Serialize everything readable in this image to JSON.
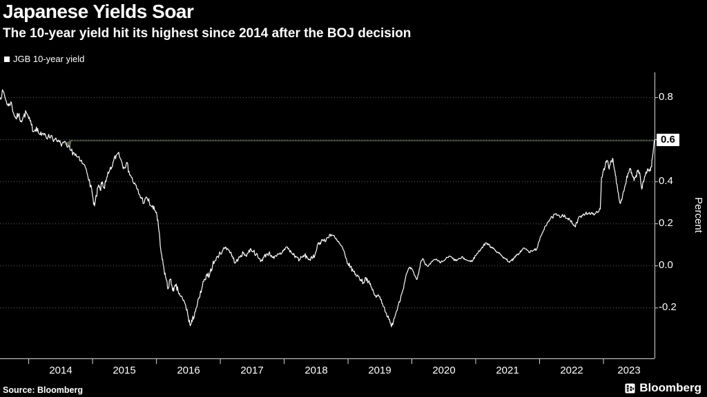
{
  "header": {
    "title": "Japanese Yields Soar",
    "subtitle": "The 10-year yield hit its highest since 2014 after the BOJ decision"
  },
  "legend": {
    "label": "JGB 10-year yield",
    "marker_color": "#ffffff"
  },
  "axes": {
    "y_label": "Percent",
    "y_ticks": [
      0.8,
      0.6,
      0.4,
      0.2,
      0.0,
      -0.2
    ],
    "y_tick_labels": [
      "0.8",
      "0.6",
      "0.4",
      "0.2",
      "0.0",
      "-0.2"
    ],
    "highlighted_tick": "0.6",
    "x_ticks": [
      "2014",
      "2015",
      "2016",
      "2017",
      "2018",
      "2019",
      "2020",
      "2021",
      "2022",
      "2023"
    ]
  },
  "source": {
    "text": "Source: Bloomberg"
  },
  "branding": {
    "logo_text": "Bloomberg"
  },
  "colors": {
    "background": "#000000",
    "text": "#ffffff",
    "grid": "#6a6a6a",
    "axis": "#d9d9d9",
    "series": "#ffffff",
    "reference_line": "#55624a",
    "highlight_bg": "#ffffff",
    "highlight_text": "#000000"
  },
  "chart_data": {
    "type": "line",
    "title": "Japanese Yields Soar",
    "subtitle": "The 10-year yield hit its highest since 2014 after the BOJ decision",
    "ylabel": "Percent",
    "legend_position": "top-left",
    "grid": "dotted-horizontal",
    "xlim": [
      2013.55,
      2023.8
    ],
    "ylim": [
      -0.44,
      0.92
    ],
    "x_tick_years": [
      2014,
      2015,
      2016,
      2017,
      2018,
      2019,
      2020,
      2021,
      2022,
      2023
    ],
    "y_ticks": [
      0.8,
      0.6,
      0.4,
      0.2,
      0.0,
      -0.2
    ],
    "reference_line": {
      "value": 0.595,
      "axis_label": "0.6"
    },
    "series": [
      {
        "name": "JGB 10-year yield",
        "color": "#ffffff",
        "points": [
          [
            2013.55,
            0.8
          ],
          [
            2013.6,
            0.83
          ],
          [
            2013.64,
            0.79
          ],
          [
            2013.68,
            0.76
          ],
          [
            2013.72,
            0.78
          ],
          [
            2013.76,
            0.73
          ],
          [
            2013.8,
            0.7
          ],
          [
            2013.84,
            0.72
          ],
          [
            2013.88,
            0.69
          ],
          [
            2013.92,
            0.71
          ],
          [
            2013.96,
            0.73
          ],
          [
            2014.0,
            0.7
          ],
          [
            2014.04,
            0.67
          ],
          [
            2014.08,
            0.64
          ],
          [
            2014.12,
            0.66
          ],
          [
            2014.16,
            0.63
          ],
          [
            2014.2,
            0.62
          ],
          [
            2014.25,
            0.63
          ],
          [
            2014.3,
            0.61
          ],
          [
            2014.35,
            0.62
          ],
          [
            2014.4,
            0.6
          ],
          [
            2014.45,
            0.59
          ],
          [
            2014.5,
            0.58
          ],
          [
            2014.55,
            0.585
          ],
          [
            2014.6,
            0.565
          ],
          [
            2014.65,
            0.55
          ],
          [
            2014.7,
            0.54
          ],
          [
            2014.75,
            0.52
          ],
          [
            2014.8,
            0.5
          ],
          [
            2014.85,
            0.485
          ],
          [
            2014.9,
            0.46
          ],
          [
            2014.95,
            0.41
          ],
          [
            2015.0,
            0.33
          ],
          [
            2015.03,
            0.285
          ],
          [
            2015.06,
            0.33
          ],
          [
            2015.09,
            0.38
          ],
          [
            2015.12,
            0.36
          ],
          [
            2015.15,
            0.4
          ],
          [
            2015.18,
            0.37
          ],
          [
            2015.21,
            0.4
          ],
          [
            2015.25,
            0.44
          ],
          [
            2015.29,
            0.46
          ],
          [
            2015.33,
            0.5
          ],
          [
            2015.37,
            0.525
          ],
          [
            2015.41,
            0.54
          ],
          [
            2015.45,
            0.5
          ],
          [
            2015.49,
            0.47
          ],
          [
            2015.53,
            0.49
          ],
          [
            2015.57,
            0.45
          ],
          [
            2015.61,
            0.42
          ],
          [
            2015.65,
            0.39
          ],
          [
            2015.69,
            0.37
          ],
          [
            2015.73,
            0.34
          ],
          [
            2015.77,
            0.32
          ],
          [
            2015.81,
            0.3
          ],
          [
            2015.85,
            0.325
          ],
          [
            2015.89,
            0.3
          ],
          [
            2015.93,
            0.28
          ],
          [
            2015.97,
            0.265
          ],
          [
            2016.0,
            0.255
          ],
          [
            2016.03,
            0.19
          ],
          [
            2016.06,
            0.095
          ],
          [
            2016.09,
            0.03
          ],
          [
            2016.12,
            -0.02
          ],
          [
            2016.15,
            -0.06
          ],
          [
            2016.18,
            -0.11
          ],
          [
            2016.21,
            -0.065
          ],
          [
            2016.24,
            -0.09
          ],
          [
            2016.27,
            -0.12
          ],
          [
            2016.3,
            -0.095
          ],
          [
            2016.34,
            -0.12
          ],
          [
            2016.38,
            -0.145
          ],
          [
            2016.42,
            -0.165
          ],
          [
            2016.46,
            -0.19
          ],
          [
            2016.5,
            -0.245
          ],
          [
            2016.53,
            -0.285
          ],
          [
            2016.56,
            -0.265
          ],
          [
            2016.6,
            -0.22
          ],
          [
            2016.64,
            -0.185
          ],
          [
            2016.68,
            -0.145
          ],
          [
            2016.72,
            -0.095
          ],
          [
            2016.76,
            -0.065
          ],
          [
            2016.8,
            -0.05
          ],
          [
            2016.84,
            -0.03
          ],
          [
            2016.88,
            0.005
          ],
          [
            2016.92,
            0.025
          ],
          [
            2016.96,
            0.045
          ],
          [
            2017.0,
            0.06
          ],
          [
            2017.04,
            0.075
          ],
          [
            2017.08,
            0.09
          ],
          [
            2017.12,
            0.08
          ],
          [
            2017.16,
            0.065
          ],
          [
            2017.2,
            0.035
          ],
          [
            2017.24,
            0.015
          ],
          [
            2017.28,
            0.03
          ],
          [
            2017.32,
            0.05
          ],
          [
            2017.36,
            0.06
          ],
          [
            2017.4,
            0.05
          ],
          [
            2017.44,
            0.065
          ],
          [
            2017.48,
            0.08
          ],
          [
            2017.52,
            0.07
          ],
          [
            2017.56,
            0.055
          ],
          [
            2017.6,
            0.035
          ],
          [
            2017.64,
            0.025
          ],
          [
            2017.68,
            0.04
          ],
          [
            2017.72,
            0.055
          ],
          [
            2017.76,
            0.06
          ],
          [
            2017.8,
            0.05
          ],
          [
            2017.84,
            0.035
          ],
          [
            2017.88,
            0.045
          ],
          [
            2017.92,
            0.055
          ],
          [
            2017.96,
            0.06
          ],
          [
            2018.0,
            0.08
          ],
          [
            2018.04,
            0.09
          ],
          [
            2018.08,
            0.075
          ],
          [
            2018.12,
            0.06
          ],
          [
            2018.16,
            0.05
          ],
          [
            2018.2,
            0.04
          ],
          [
            2018.24,
            0.03
          ],
          [
            2018.28,
            0.04
          ],
          [
            2018.32,
            0.05
          ],
          [
            2018.36,
            0.04
          ],
          [
            2018.4,
            0.03
          ],
          [
            2018.44,
            0.035
          ],
          [
            2018.48,
            0.05
          ],
          [
            2018.52,
            0.1
          ],
          [
            2018.56,
            0.11
          ],
          [
            2018.6,
            0.125
          ],
          [
            2018.64,
            0.115
          ],
          [
            2018.68,
            0.135
          ],
          [
            2018.72,
            0.15
          ],
          [
            2018.76,
            0.145
          ],
          [
            2018.8,
            0.13
          ],
          [
            2018.84,
            0.115
          ],
          [
            2018.88,
            0.1
          ],
          [
            2018.92,
            0.08
          ],
          [
            2018.96,
            0.04
          ],
          [
            2019.0,
            0.01
          ],
          [
            2019.04,
            -0.005
          ],
          [
            2019.08,
            -0.025
          ],
          [
            2019.12,
            -0.04
          ],
          [
            2019.16,
            -0.05
          ],
          [
            2019.2,
            -0.065
          ],
          [
            2019.24,
            -0.08
          ],
          [
            2019.28,
            -0.055
          ],
          [
            2019.32,
            -0.075
          ],
          [
            2019.36,
            -0.1
          ],
          [
            2019.4,
            -0.125
          ],
          [
            2019.44,
            -0.15
          ],
          [
            2019.48,
            -0.14
          ],
          [
            2019.52,
            -0.16
          ],
          [
            2019.56,
            -0.195
          ],
          [
            2019.6,
            -0.225
          ],
          [
            2019.64,
            -0.255
          ],
          [
            2019.68,
            -0.29
          ],
          [
            2019.72,
            -0.25
          ],
          [
            2019.76,
            -0.215
          ],
          [
            2019.8,
            -0.17
          ],
          [
            2019.84,
            -0.135
          ],
          [
            2019.88,
            -0.085
          ],
          [
            2019.92,
            -0.035
          ],
          [
            2019.96,
            -0.01
          ],
          [
            2020.0,
            -0.015
          ],
          [
            2020.04,
            -0.045
          ],
          [
            2020.08,
            -0.065
          ],
          [
            2020.11,
            -0.03
          ],
          [
            2020.14,
            0.02
          ],
          [
            2020.17,
            0.035
          ],
          [
            2020.2,
            0.015
          ],
          [
            2020.24,
            0.0
          ],
          [
            2020.28,
            0.01
          ],
          [
            2020.32,
            0.02
          ],
          [
            2020.36,
            0.03
          ],
          [
            2020.4,
            0.025
          ],
          [
            2020.44,
            0.015
          ],
          [
            2020.48,
            0.02
          ],
          [
            2020.52,
            0.03
          ],
          [
            2020.56,
            0.04
          ],
          [
            2020.6,
            0.045
          ],
          [
            2020.64,
            0.035
          ],
          [
            2020.68,
            0.025
          ],
          [
            2020.72,
            0.03
          ],
          [
            2020.76,
            0.035
          ],
          [
            2020.8,
            0.04
          ],
          [
            2020.84,
            0.03
          ],
          [
            2020.88,
            0.025
          ],
          [
            2020.92,
            0.02
          ],
          [
            2020.96,
            0.03
          ],
          [
            2021.0,
            0.05
          ],
          [
            2021.04,
            0.065
          ],
          [
            2021.08,
            0.08
          ],
          [
            2021.12,
            0.095
          ],
          [
            2021.16,
            0.11
          ],
          [
            2021.2,
            0.1
          ],
          [
            2021.24,
            0.09
          ],
          [
            2021.28,
            0.085
          ],
          [
            2021.32,
            0.07
          ],
          [
            2021.36,
            0.06
          ],
          [
            2021.4,
            0.05
          ],
          [
            2021.44,
            0.04
          ],
          [
            2021.48,
            0.03
          ],
          [
            2021.52,
            0.02
          ],
          [
            2021.56,
            0.025
          ],
          [
            2021.6,
            0.035
          ],
          [
            2021.64,
            0.05
          ],
          [
            2021.68,
            0.06
          ],
          [
            2021.72,
            0.075
          ],
          [
            2021.76,
            0.085
          ],
          [
            2021.8,
            0.075
          ],
          [
            2021.84,
            0.065
          ],
          [
            2021.88,
            0.07
          ],
          [
            2021.92,
            0.075
          ],
          [
            2021.96,
            0.085
          ],
          [
            2022.0,
            0.12
          ],
          [
            2022.04,
            0.155
          ],
          [
            2022.08,
            0.185
          ],
          [
            2022.12,
            0.205
          ],
          [
            2022.16,
            0.22
          ],
          [
            2022.2,
            0.23
          ],
          [
            2022.24,
            0.245
          ],
          [
            2022.28,
            0.24
          ],
          [
            2022.32,
            0.23
          ],
          [
            2022.36,
            0.245
          ],
          [
            2022.4,
            0.235
          ],
          [
            2022.44,
            0.225
          ],
          [
            2022.48,
            0.215
          ],
          [
            2022.52,
            0.2
          ],
          [
            2022.56,
            0.185
          ],
          [
            2022.6,
            0.22
          ],
          [
            2022.64,
            0.235
          ],
          [
            2022.68,
            0.245
          ],
          [
            2022.72,
            0.25
          ],
          [
            2022.76,
            0.25
          ],
          [
            2022.8,
            0.245
          ],
          [
            2022.84,
            0.25
          ],
          [
            2022.88,
            0.25
          ],
          [
            2022.92,
            0.255
          ],
          [
            2022.95,
            0.27
          ],
          [
            2022.97,
            0.42
          ],
          [
            2023.0,
            0.455
          ],
          [
            2023.03,
            0.48
          ],
          [
            2023.06,
            0.5
          ],
          [
            2023.09,
            0.46
          ],
          [
            2023.12,
            0.5
          ],
          [
            2023.15,
            0.505
          ],
          [
            2023.18,
            0.45
          ],
          [
            2023.21,
            0.39
          ],
          [
            2023.24,
            0.33
          ],
          [
            2023.27,
            0.3
          ],
          [
            2023.3,
            0.335
          ],
          [
            2023.33,
            0.37
          ],
          [
            2023.36,
            0.41
          ],
          [
            2023.39,
            0.44
          ],
          [
            2023.42,
            0.46
          ],
          [
            2023.45,
            0.43
          ],
          [
            2023.48,
            0.405
          ],
          [
            2023.51,
            0.43
          ],
          [
            2023.54,
            0.45
          ],
          [
            2023.57,
            0.44
          ],
          [
            2023.6,
            0.365
          ],
          [
            2023.63,
            0.4
          ],
          [
            2023.66,
            0.44
          ],
          [
            2023.69,
            0.46
          ],
          [
            2023.72,
            0.45
          ],
          [
            2023.75,
            0.47
          ],
          [
            2023.77,
            0.52
          ],
          [
            2023.8,
            0.6
          ]
        ]
      }
    ]
  }
}
